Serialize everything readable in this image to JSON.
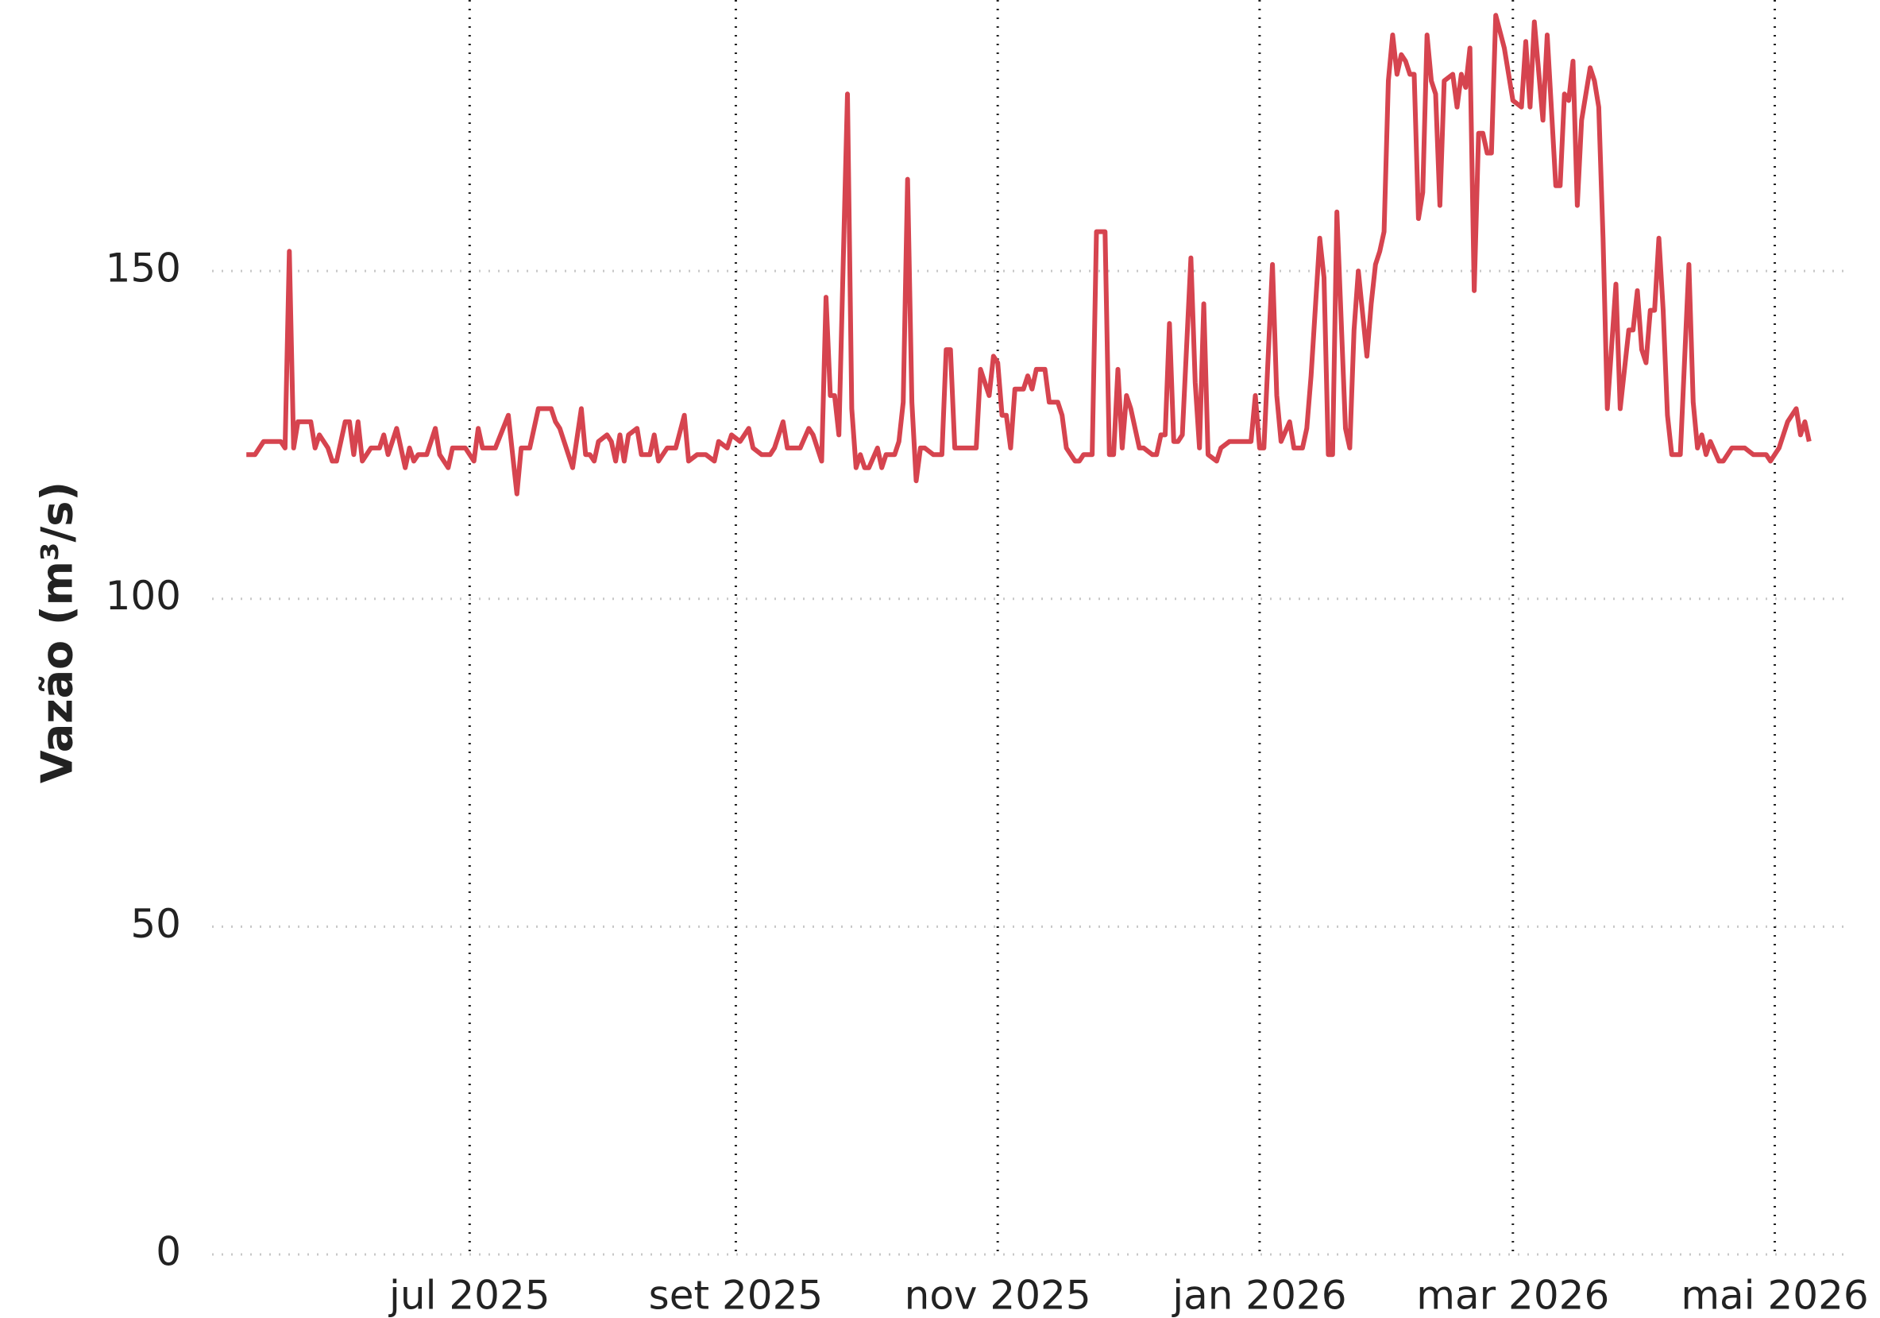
{
  "chart_data": {
    "type": "line",
    "y_label": "Vazão (m³/s)",
    "x": [
      "2025-05-10",
      "2025-05-12",
      "2025-05-14",
      "2025-05-18",
      "2025-05-19",
      "2025-05-20",
      "2025-05-21",
      "2025-05-22",
      "2025-05-25",
      "2025-05-26",
      "2025-05-27",
      "2025-05-29",
      "2025-05-30",
      "2025-05-31",
      "2025-06-02",
      "2025-06-03",
      "2025-06-04",
      "2025-06-05",
      "2025-06-06",
      "2025-06-08",
      "2025-06-10",
      "2025-06-11",
      "2025-06-12",
      "2025-06-14",
      "2025-06-16",
      "2025-06-17",
      "2025-06-18",
      "2025-06-19",
      "2025-06-21",
      "2025-06-23",
      "2025-06-24",
      "2025-06-26",
      "2025-06-27",
      "2025-06-30",
      "2025-07-02",
      "2025-07-03",
      "2025-07-04",
      "2025-07-07",
      "2025-07-10",
      "2025-07-12",
      "2025-07-13",
      "2025-07-15",
      "2025-07-17",
      "2025-07-20",
      "2025-07-21",
      "2025-07-22",
      "2025-07-23",
      "2025-07-25",
      "2025-07-27",
      "2025-07-28",
      "2025-07-29",
      "2025-07-30",
      "2025-07-31",
      "2025-08-02",
      "2025-08-03",
      "2025-08-04",
      "2025-08-05",
      "2025-08-06",
      "2025-08-07",
      "2025-08-09",
      "2025-08-10",
      "2025-08-12",
      "2025-08-13",
      "2025-08-14",
      "2025-08-16",
      "2025-08-18",
      "2025-08-20",
      "2025-08-21",
      "2025-08-23",
      "2025-08-25",
      "2025-08-27",
      "2025-08-28",
      "2025-08-30",
      "2025-08-31",
      "2025-09-02",
      "2025-09-04",
      "2025-09-05",
      "2025-09-07",
      "2025-09-09",
      "2025-09-10",
      "2025-09-12",
      "2025-09-13",
      "2025-09-15",
      "2025-09-16",
      "2025-09-18",
      "2025-09-19",
      "2025-09-21",
      "2025-09-22",
      "2025-09-23",
      "2025-09-24",
      "2025-09-25",
      "2025-09-27",
      "2025-09-28",
      "2025-09-29",
      "2025-09-30",
      "2025-10-01",
      "2025-10-02",
      "2025-10-04",
      "2025-10-05",
      "2025-10-06",
      "2025-10-08",
      "2025-10-09",
      "2025-10-10",
      "2025-10-11",
      "2025-10-12",
      "2025-10-13",
      "2025-10-14",
      "2025-10-15",
      "2025-10-17",
      "2025-10-19",
      "2025-10-20",
      "2025-10-21",
      "2025-10-22",
      "2025-10-27",
      "2025-10-28",
      "2025-10-30",
      "2025-10-31",
      "2025-11-01",
      "2025-11-02",
      "2025-11-03",
      "2025-11-04",
      "2025-11-05",
      "2025-11-07",
      "2025-11-08",
      "2025-11-09",
      "2025-11-10",
      "2025-11-12",
      "2025-11-13",
      "2025-11-15",
      "2025-11-16",
      "2025-11-17",
      "2025-11-19",
      "2025-11-20",
      "2025-11-21",
      "2025-11-23",
      "2025-11-24",
      "2025-11-26",
      "2025-11-27",
      "2025-11-28",
      "2025-11-29",
      "2025-11-30",
      "2025-12-01",
      "2025-12-02",
      "2025-12-04",
      "2025-12-05",
      "2025-12-07",
      "2025-12-08",
      "2025-12-09",
      "2025-12-10",
      "2025-12-11",
      "2025-12-12",
      "2025-12-13",
      "2025-12-14",
      "2025-12-16",
      "2025-12-17",
      "2025-12-18",
      "2025-12-19",
      "2025-12-20",
      "2025-12-22",
      "2025-12-23",
      "2025-12-25",
      "2025-12-29",
      "2025-12-30",
      "2025-12-31",
      "2026-01-01",
      "2026-01-02",
      "2026-01-04",
      "2026-01-05",
      "2026-01-06",
      "2026-01-08",
      "2026-01-09",
      "2026-01-11",
      "2026-01-12",
      "2026-01-13",
      "2026-01-15",
      "2026-01-16",
      "2026-01-17",
      "2026-01-18",
      "2026-01-19",
      "2026-01-21",
      "2026-01-22",
      "2026-01-23",
      "2026-01-24",
      "2026-01-26",
      "2026-01-27",
      "2026-01-28",
      "2026-01-29",
      "2026-01-30",
      "2026-01-31",
      "2026-02-01",
      "2026-02-02",
      "2026-02-03",
      "2026-02-04",
      "2026-02-05",
      "2026-02-06",
      "2026-02-07",
      "2026-02-08",
      "2026-02-09",
      "2026-02-10",
      "2026-02-11",
      "2026-02-12",
      "2026-02-13",
      "2026-02-15",
      "2026-02-16",
      "2026-02-17",
      "2026-02-18",
      "2026-02-19",
      "2026-02-20",
      "2026-02-21",
      "2026-02-22",
      "2026-02-23",
      "2026-02-24",
      "2026-02-25",
      "2026-02-27",
      "2026-02-28",
      "2026-03-01",
      "2026-03-03",
      "2026-03-04",
      "2026-03-05",
      "2026-03-06",
      "2026-03-08",
      "2026-03-09",
      "2026-03-11",
      "2026-03-12",
      "2026-03-13",
      "2026-03-14",
      "2026-03-15",
      "2026-03-16",
      "2026-03-17",
      "2026-03-19",
      "2026-03-20",
      "2026-03-21",
      "2026-03-22",
      "2026-03-23",
      "2026-03-25",
      "2026-03-26",
      "2026-03-27",
      "2026-03-28",
      "2026-03-29",
      "2026-03-30",
      "2026-03-31",
      "2026-04-01",
      "2026-04-02",
      "2026-04-03",
      "2026-04-04",
      "2026-04-05",
      "2026-04-06",
      "2026-04-07",
      "2026-04-09",
      "2026-04-11",
      "2026-04-12",
      "2026-04-13",
      "2026-04-14",
      "2026-04-15",
      "2026-04-16",
      "2026-04-18",
      "2026-04-19",
      "2026-04-21",
      "2026-04-22",
      "2026-04-24",
      "2026-04-26",
      "2026-04-29",
      "2026-04-30",
      "2026-05-02",
      "2026-05-03",
      "2026-05-04",
      "2026-05-06",
      "2026-05-07",
      "2026-05-08",
      "2026-05-09"
    ],
    "series": [
      {
        "color": "#d6444f",
        "values": [
          122,
          122,
          124,
          124,
          123,
          153,
          123,
          127,
          127,
          123,
          125,
          123,
          121,
          121,
          127,
          127,
          122,
          127,
          121,
          123,
          123,
          125,
          122,
          126,
          120,
          123,
          121,
          122,
          122,
          126,
          122,
          120,
          123,
          123,
          121,
          126,
          123,
          123,
          128,
          116,
          123,
          123,
          129,
          129,
          127,
          126,
          124,
          120,
          129,
          122,
          122,
          121,
          124,
          125,
          124,
          121,
          125,
          121,
          125,
          126,
          122,
          122,
          125,
          121,
          123,
          123,
          128,
          121,
          122,
          122,
          121,
          124,
          123,
          125,
          124,
          126,
          123,
          122,
          122,
          123,
          127,
          123,
          123,
          123,
          126,
          125,
          121,
          146,
          131,
          131,
          125,
          177,
          129,
          120,
          122,
          120,
          120,
          123,
          120,
          122,
          122,
          124,
          130,
          164,
          130,
          118,
          123,
          123,
          122,
          122,
          138,
          138,
          123,
          123,
          135,
          131,
          137,
          136,
          128,
          128,
          123,
          132,
          132,
          134,
          132,
          135,
          135,
          130,
          130,
          128,
          123,
          121,
          121,
          122,
          122,
          156,
          156,
          122,
          122,
          135,
          123,
          131,
          129,
          123,
          123,
          122,
          122,
          125,
          125,
          142,
          124,
          124,
          125,
          152,
          133,
          123,
          145,
          122,
          121,
          123,
          124,
          124,
          124,
          131,
          123,
          123,
          151,
          131,
          124,
          127,
          123,
          123,
          126,
          134,
          155,
          149,
          122,
          122,
          159,
          126,
          123,
          141,
          150,
          137,
          145,
          151,
          153,
          156,
          179,
          186,
          180,
          183,
          182,
          180,
          180,
          158,
          162,
          186,
          179,
          177,
          160,
          179,
          180,
          175,
          180,
          178,
          184,
          147,
          171,
          171,
          168,
          168,
          189,
          184,
          180,
          176,
          175,
          185,
          175,
          188,
          173,
          186,
          163,
          163,
          177,
          176,
          182,
          160,
          173,
          181,
          179,
          175,
          155,
          129,
          148,
          129,
          135,
          141,
          141,
          147,
          138,
          136,
          144,
          144,
          155,
          144,
          128,
          122,
          122,
          151,
          130,
          123,
          125,
          122,
          124,
          121,
          121,
          123,
          123,
          123,
          122,
          122,
          121,
          123,
          125,
          127,
          129,
          125,
          127,
          124
        ]
      }
    ],
    "xlim": [
      "2025-05-02",
      "2026-05-17"
    ],
    "xticks": [
      {
        "value": "2025-07-01",
        "label": "jul 2025"
      },
      {
        "value": "2025-09-01",
        "label": "set 2025"
      },
      {
        "value": "2025-11-01",
        "label": "nov 2025"
      },
      {
        "value": "2026-01-01",
        "label": "jan 2026"
      },
      {
        "value": "2026-03-01",
        "label": "mar 2026"
      },
      {
        "value": "2026-05-01",
        "label": "mai 2026"
      }
    ],
    "ylim": [
      0,
      190
    ],
    "yticks": [
      0,
      50,
      100,
      150
    ],
    "grid": true
  }
}
